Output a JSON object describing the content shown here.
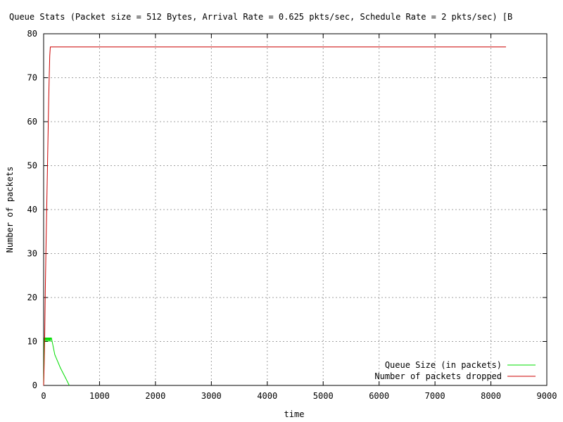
{
  "chart_data": {
    "type": "line",
    "title": "Queue Stats (Packet size = 512 Bytes, Arrival Rate = 0.625 pkts/sec, Schedule Rate = 2 pkts/sec) [B",
    "xlabel": "time",
    "ylabel": "Number of packets",
    "xlim": [
      0,
      9000
    ],
    "ylim": [
      0,
      80
    ],
    "xticks": [
      0,
      1000,
      2000,
      3000,
      4000,
      5000,
      6000,
      7000,
      8000,
      9000
    ],
    "yticks": [
      0,
      10,
      20,
      30,
      40,
      50,
      60,
      70,
      80
    ],
    "grid": true,
    "legend_position": "bottom-right",
    "series": [
      {
        "name": "Queue Size (in packets)",
        "color": "#00dd00",
        "x": [
          0,
          5,
          10,
          20,
          25,
          30,
          40,
          45,
          50,
          60,
          65,
          70,
          80,
          85,
          90,
          100,
          105,
          110,
          120,
          125,
          130,
          140,
          200,
          300,
          400,
          460
        ],
        "y": [
          0,
          5,
          10.8,
          10.8,
          10,
          10.8,
          10.8,
          10,
          10.8,
          10.8,
          10,
          10.8,
          10.8,
          10,
          10.8,
          10.8,
          10,
          10.8,
          10.8,
          10,
          10.8,
          10.8,
          7,
          4,
          1.5,
          0
        ]
      },
      {
        "name": "Number of packets dropped",
        "color": "#cc0000",
        "x": [
          0,
          10,
          20,
          30,
          40,
          50,
          60,
          70,
          80,
          90,
          100,
          110,
          120,
          8270
        ],
        "y": [
          0,
          5,
          12,
          22,
          30,
          37,
          44,
          51,
          58,
          65,
          70,
          75,
          77,
          77
        ]
      }
    ]
  }
}
